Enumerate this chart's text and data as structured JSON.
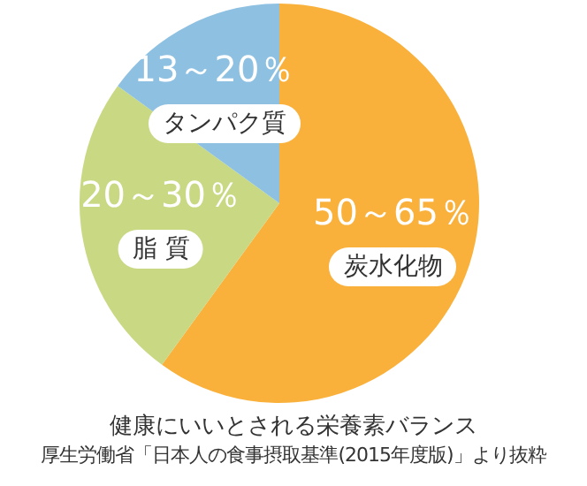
{
  "chart_data": {
    "type": "pie",
    "title": "健康にいいとされる栄養素バランス",
    "annotations": [
      {
        "text": "50～65％",
        "x": "炭水化物"
      },
      {
        "text": "20～30％",
        "x": "脂 質"
      },
      {
        "text": "13～20％",
        "x": "タンパク質"
      },
      "厚生労働省「日本人の食事摂取基準(2015年度版)」より抜粋"
    ],
    "categories": [
      "炭水化物",
      "脂 質",
      "タンパク質"
    ],
    "values": [
      60,
      25,
      15
    ],
    "colors": [
      "#f9b13c",
      "#c8d883",
      "#8ec0e2"
    ],
    "legend": false
  }
}
